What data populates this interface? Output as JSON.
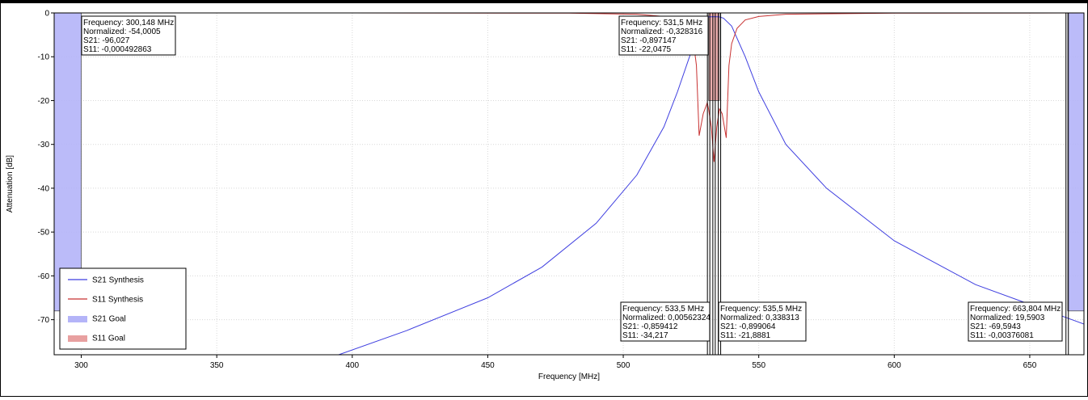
{
  "chart_data": {
    "type": "line",
    "title": "",
    "xlabel": "Frequency [MHz]",
    "ylabel": "Attenuation [dB]",
    "xlim": [
      290,
      670
    ],
    "ylim": [
      -78,
      0
    ],
    "x_ticks": [
      300,
      350,
      400,
      450,
      500,
      550,
      600,
      650
    ],
    "y_ticks": [
      0,
      -10,
      -20,
      -30,
      -40,
      -50,
      -60,
      -70
    ],
    "grid": true,
    "legend_position": "bottom-left",
    "series": [
      {
        "name": "S21 Synthesis",
        "color": "#3f3fe0",
        "x": [
          395,
          420,
          450,
          470,
          490,
          505,
          515,
          520,
          525,
          528,
          530,
          531.5,
          533.5,
          535.5,
          537,
          540,
          545,
          550,
          560,
          575,
          600,
          630,
          663.804,
          670
        ],
        "y": [
          -78,
          -72.5,
          -65,
          -58,
          -48,
          -37,
          -26,
          -18,
          -9,
          -4,
          -1.6,
          -0.9,
          -0.86,
          -0.9,
          -1.2,
          -3,
          -10,
          -18,
          -30,
          -40,
          -52,
          -62,
          -69.6,
          -71
        ]
      },
      {
        "name": "S11 Synthesis",
        "color": "#c83232",
        "x": [
          290,
          400,
          480,
          505,
          515,
          520,
          524,
          526,
          527,
          528,
          529.5,
          531,
          531.5,
          532.5,
          533.5,
          534.5,
          535.5,
          536.5,
          538,
          539,
          540,
          542,
          545,
          550,
          560,
          600,
          670
        ],
        "y": [
          -0.0005,
          -0.001,
          -0.05,
          -0.3,
          -0.8,
          -1.6,
          -3.5,
          -7,
          -12,
          -28,
          -23,
          -20.5,
          -22,
          -26,
          -34,
          -26,
          -21.9,
          -23,
          -28.5,
          -12,
          -7,
          -3.5,
          -1.6,
          -0.8,
          -0.3,
          -0.05,
          -0.004
        ]
      }
    ],
    "goals": [
      {
        "name": "S21 Goal",
        "color": "#b4b4f8",
        "regions": [
          {
            "x": [
              290,
              300
            ],
            "y": [
              -68,
              0
            ]
          },
          {
            "x": [
              664,
              670
            ],
            "y": [
              -68,
              0
            ]
          }
        ]
      },
      {
        "name": "S11 Goal",
        "color": "#e8a0a0",
        "regions": [
          {
            "x": [
              531.5,
              535.5
            ],
            "y": [
              -20,
              0
            ]
          }
        ]
      }
    ],
    "marker_lines": [
      531.5,
      533.5,
      535.5,
      663.804
    ],
    "markers": [
      {
        "id": "m1",
        "lines": [
          "Frequency: 300,148 MHz",
          "Normalized: -54,0005",
          "S21: -96,027",
          "S11: -0,000492863"
        ]
      },
      {
        "id": "m2",
        "lines": [
          "Frequency: 531,5 MHz",
          "Normalized: -0,328316",
          "S21: -0,897147",
          "S11: -22,0475"
        ]
      },
      {
        "id": "m3",
        "lines": [
          "Frequency: 533,5 MHz",
          "Normalized: 0,00562324",
          "S21: -0,859412",
          "S11: -34,217"
        ]
      },
      {
        "id": "m4",
        "lines": [
          "Frequency: 535,5 MHz",
          "Normalized: 0,338313",
          "S21: -0,899064",
          "S11: -21,8881"
        ]
      },
      {
        "id": "m5",
        "lines": [
          "Frequency: 663,804 MHz",
          "Normalized: 19,5903",
          "S21: -69,5943",
          "S11: -0,00376081"
        ]
      }
    ],
    "legend": [
      {
        "label": "S21 Synthesis",
        "style": "line",
        "color": "#3f3fe0"
      },
      {
        "label": "S11 Synthesis",
        "style": "line",
        "color": "#c83232"
      },
      {
        "label": "S21 Goal",
        "style": "patch",
        "color": "#b4b4f8"
      },
      {
        "label": "S11 Goal",
        "style": "patch",
        "color": "#e8a0a0"
      }
    ]
  }
}
